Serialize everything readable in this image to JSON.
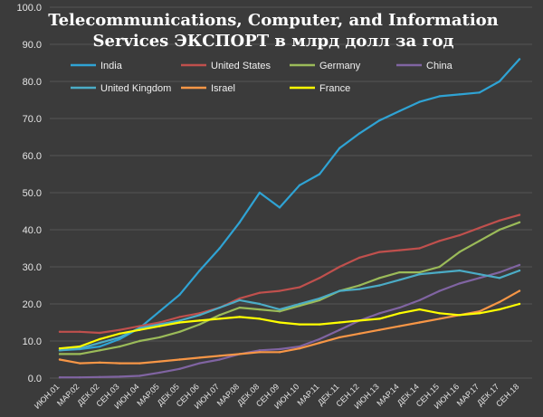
{
  "chart_data": {
    "type": "line",
    "title_line1": "Telecommunications, Computer, and Information",
    "title_line2": "Services ЭКСПОРТ в млрд долл за год",
    "xlabel": "",
    "ylabel": "",
    "ylim": [
      0,
      100
    ],
    "yticks": [
      "0.0",
      "10.0",
      "20.0",
      "30.0",
      "40.0",
      "50.0",
      "60.0",
      "70.0",
      "80.0",
      "90.0",
      "100.0"
    ],
    "grid": true,
    "legend_position": "top-left",
    "x": [
      "ИЮН.01",
      "МАР.02",
      "ДЕК.02",
      "СЕН.03",
      "ИЮН.04",
      "МАР.05",
      "ДЕК.05",
      "СЕН.06",
      "ИЮН.07",
      "МАР.08",
      "ДЕК.08",
      "СЕН.09",
      "ИЮН.10",
      "МАР.11",
      "ДЕК.11",
      "СЕН.12",
      "ИЮН.13",
      "МАР.14",
      "ДЕК.14",
      "СЕН.15",
      "ИЮН.16",
      "МАР.17",
      "ДЕК.17",
      "СЕН.18"
    ],
    "series": [
      {
        "name": "India",
        "color": "#2fa3d4",
        "values": [
          7.5,
          7.8,
          8.5,
          10.5,
          13.5,
          18.0,
          22.5,
          29.0,
          35.0,
          42.0,
          50.0,
          46.0,
          52.0,
          55.0,
          62.0,
          66.0,
          69.5,
          72.0,
          74.5,
          76.0,
          76.5,
          77.0,
          80.0,
          86.0
        ]
      },
      {
        "name": "United States",
        "color": "#c0504d",
        "values": [
          12.5,
          12.5,
          12.2,
          13.0,
          14.0,
          15.0,
          16.5,
          17.5,
          19.0,
          21.5,
          23.0,
          23.5,
          24.5,
          27.0,
          30.0,
          32.5,
          34.0,
          34.5,
          35.0,
          37.0,
          38.5,
          40.5,
          42.5,
          44.0
        ]
      },
      {
        "name": "Germany",
        "color": "#9bbb59",
        "values": [
          6.5,
          6.5,
          7.5,
          8.5,
          10.0,
          11.0,
          12.5,
          14.5,
          17.0,
          19.0,
          18.5,
          18.0,
          19.5,
          21.0,
          23.5,
          25.0,
          27.0,
          28.5,
          28.5,
          30.0,
          34.0,
          37.0,
          40.0,
          42.0
        ]
      },
      {
        "name": "China",
        "color": "#8064a2",
        "values": [
          0.2,
          0.2,
          0.3,
          0.4,
          0.6,
          1.5,
          2.5,
          4.0,
          5.0,
          6.5,
          7.5,
          7.8,
          8.5,
          10.5,
          13.0,
          15.5,
          17.5,
          19.0,
          21.0,
          23.5,
          25.5,
          27.0,
          28.5,
          30.5
        ]
      },
      {
        "name": "United Kingdom",
        "color": "#4bacc6",
        "values": [
          7.5,
          8.0,
          9.5,
          11.0,
          13.5,
          14.5,
          15.5,
          17.0,
          19.0,
          21.0,
          20.0,
          18.5,
          20.0,
          21.5,
          23.5,
          24.0,
          25.0,
          26.5,
          28.0,
          28.5,
          29.0,
          28.0,
          27.0,
          29.0
        ]
      },
      {
        "name": "Israel",
        "color": "#f79646",
        "values": [
          5.0,
          4.0,
          4.2,
          4.0,
          4.0,
          4.5,
          5.0,
          5.5,
          6.0,
          6.5,
          7.0,
          7.0,
          8.0,
          9.5,
          11.0,
          12.0,
          13.0,
          14.0,
          15.0,
          16.0,
          17.0,
          18.0,
          20.5,
          23.5
        ]
      },
      {
        "name": "France",
        "color": "#ffff00",
        "values": [
          8.0,
          8.5,
          10.5,
          12.0,
          13.0,
          14.0,
          15.0,
          15.5,
          16.0,
          16.5,
          16.0,
          15.0,
          14.5,
          14.5,
          15.0,
          15.5,
          16.0,
          17.5,
          18.5,
          17.5,
          17.0,
          17.5,
          18.5,
          20.0
        ]
      }
    ]
  }
}
